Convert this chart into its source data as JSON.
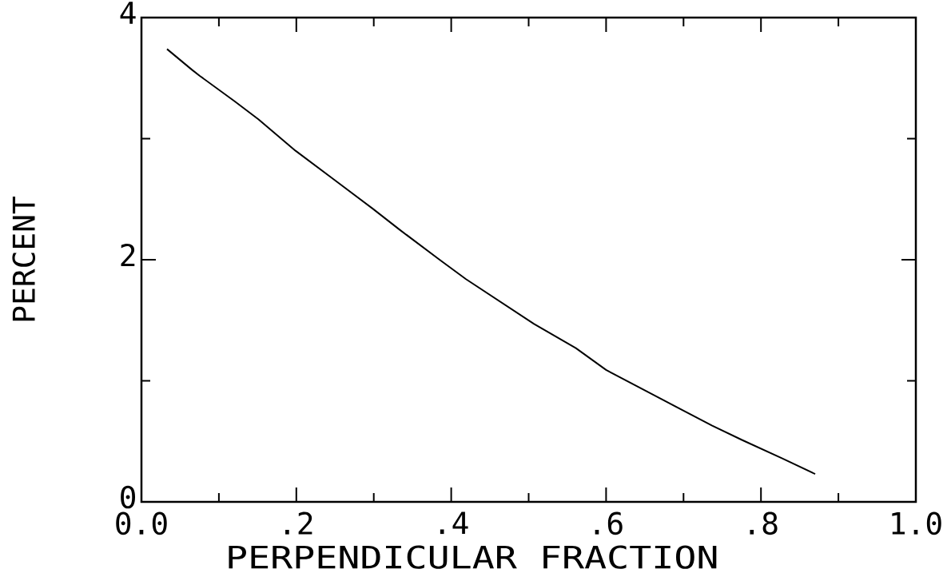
{
  "chart_data": {
    "type": "line",
    "xlabel": "PERPENDICULAR FRACTION",
    "ylabel": "PERCENT",
    "xlim": [
      0,
      1
    ],
    "ylim": [
      0,
      4
    ],
    "xticks": [
      {
        "value": 0,
        "label": "0.0"
      },
      {
        "value": 0.1,
        "label": null
      },
      {
        "value": 0.2,
        "label": ".2"
      },
      {
        "value": 0.3,
        "label": null
      },
      {
        "value": 0.4,
        "label": ".4"
      },
      {
        "value": 0.5,
        "label": null
      },
      {
        "value": 0.6,
        "label": ".6"
      },
      {
        "value": 0.7,
        "label": null
      },
      {
        "value": 0.8,
        "label": ".8"
      },
      {
        "value": 0.9,
        "label": null
      },
      {
        "value": 1,
        "label": "1.0"
      }
    ],
    "yticks": [
      0,
      {
        "value": 1,
        "label": null
      },
      2,
      {
        "value": 3,
        "label": null
      },
      4
    ],
    "x": [
      0.033,
      0.065,
      0.075,
      0.12,
      0.151,
      0.199,
      0.247,
      0.299,
      0.333,
      0.385,
      0.419,
      0.507,
      0.561,
      0.6,
      0.671,
      0.737,
      0.776,
      0.827,
      0.87
    ],
    "series": [
      {
        "color": "#000000",
        "values": [
          3.74,
          3.57,
          3.52,
          3.31,
          3.16,
          2.9,
          2.67,
          2.42,
          2.25,
          2.0,
          1.84,
          1.47,
          1.27,
          1.09,
          0.85,
          0.63,
          0.51,
          0.36,
          0.23
        ]
      }
    ]
  }
}
